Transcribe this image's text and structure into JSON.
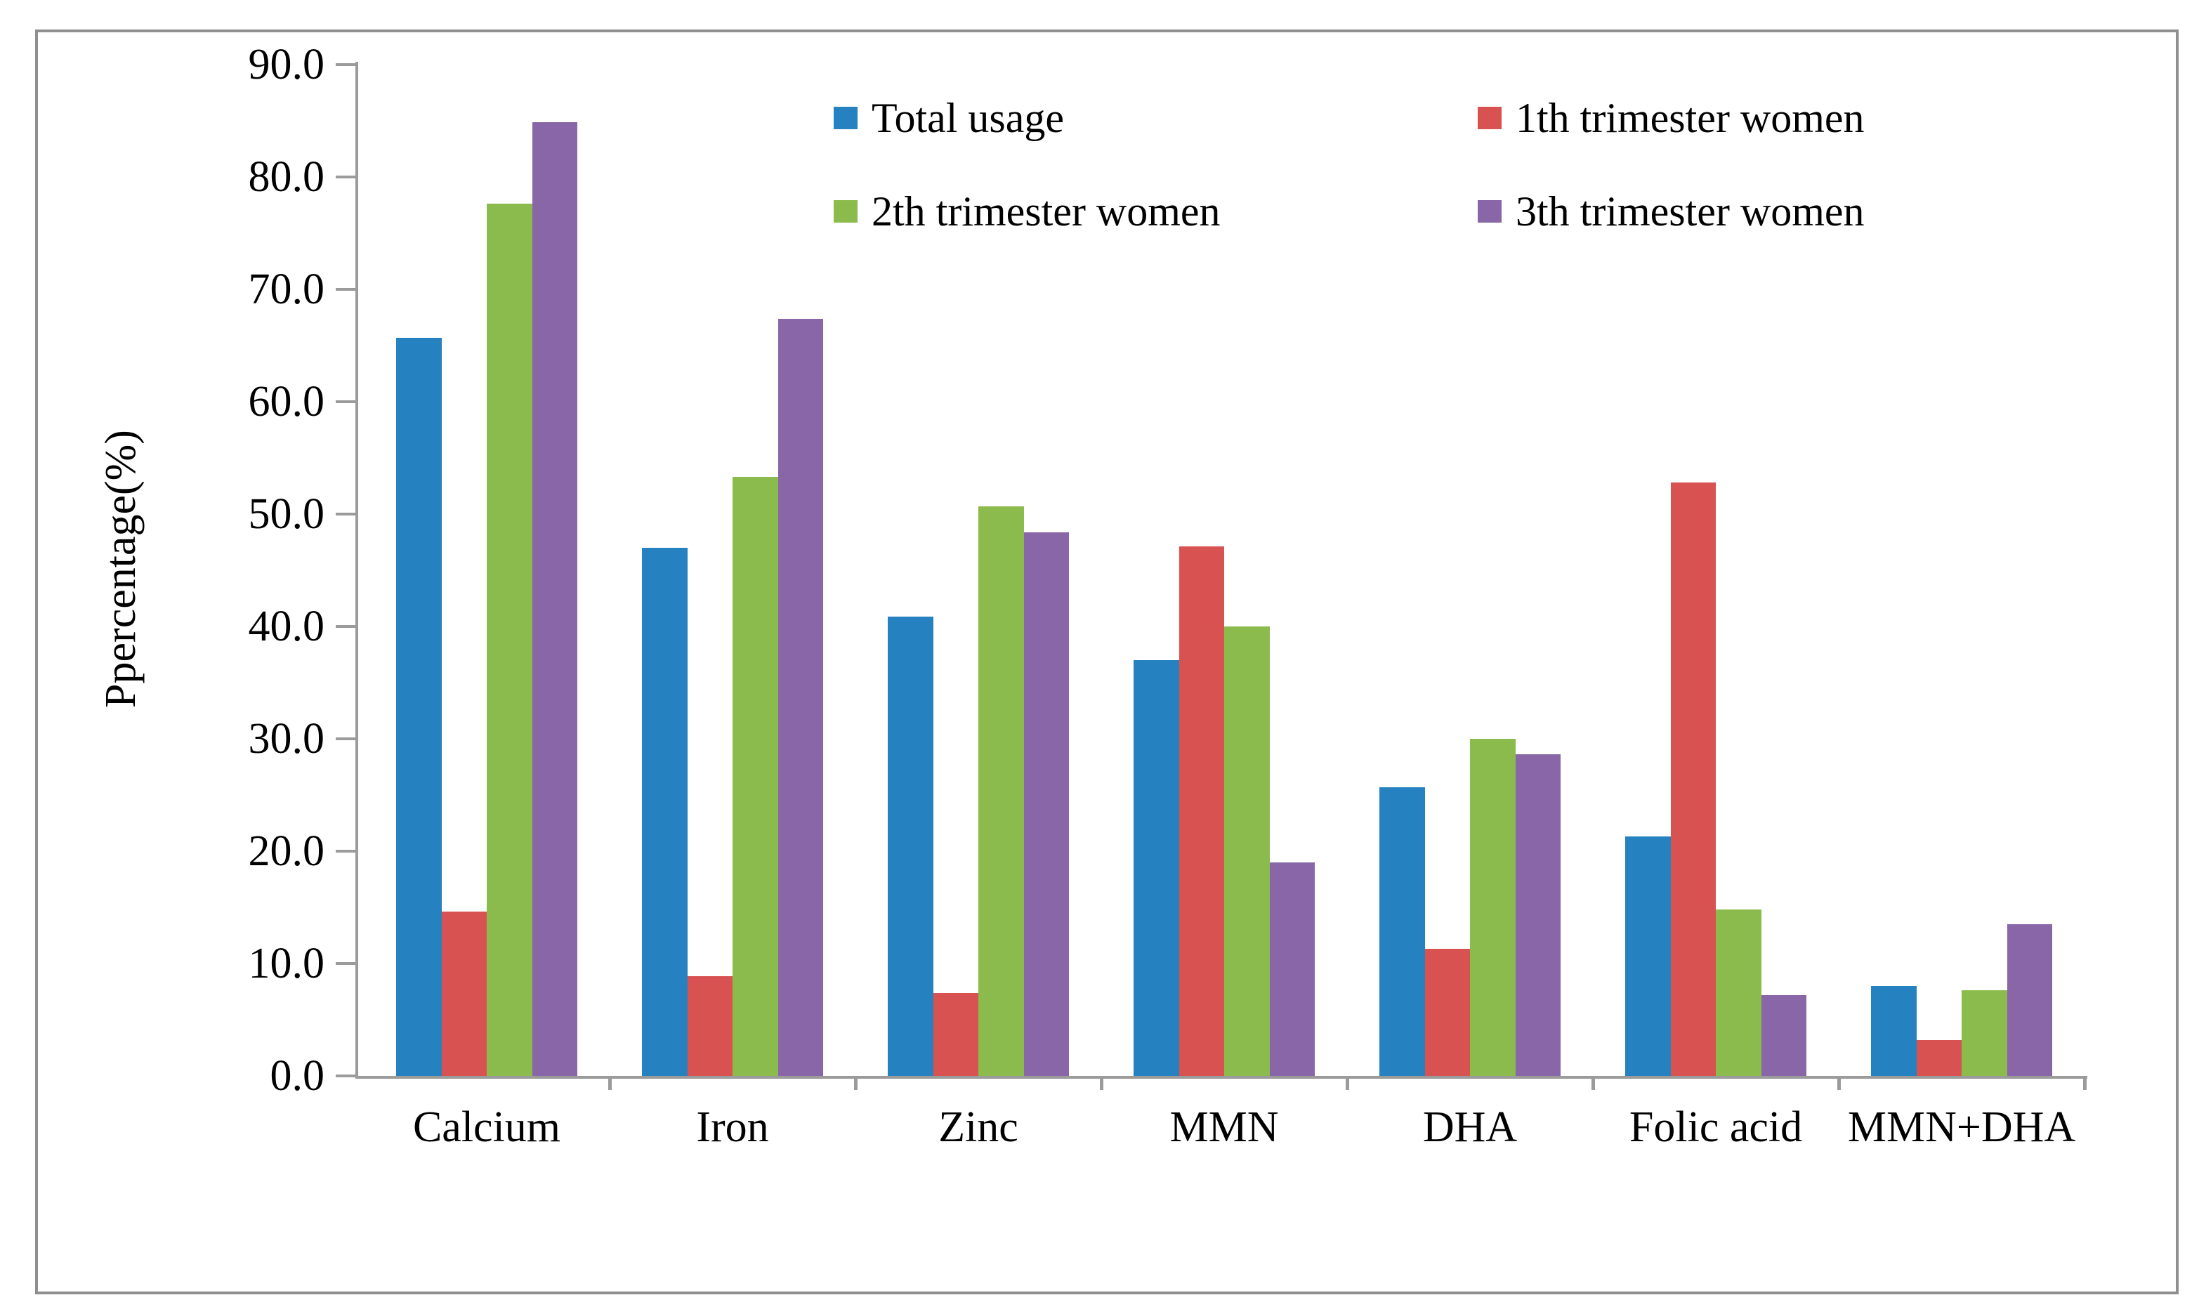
{
  "figure": {
    "background": "#ffffff",
    "border_color": "#8f8f8f",
    "axis_color": "#9b9b9b",
    "text_color": "#000000"
  },
  "chart_data": {
    "type": "bar",
    "title": "",
    "xlabel": "",
    "ylabel": "Ppercentage(%)",
    "ylim": [
      0,
      90
    ],
    "ytick_step": 10,
    "ytick_labels": [
      "0.0",
      "10.0",
      "20.0",
      "30.0",
      "40.0",
      "50.0",
      "60.0",
      "70.0",
      "80.0",
      "90.0"
    ],
    "grid": false,
    "legend_position": "top-inside-two-columns",
    "categories": [
      "Calcium",
      "Iron",
      "Zinc",
      "MMN",
      "DHA",
      "Folic acid",
      "MMN+DHA"
    ],
    "series": [
      {
        "name": "Total usage",
        "color": "#2581bf",
        "values": [
          65.7,
          47.0,
          40.9,
          37.0,
          25.7,
          21.3,
          8.0
        ]
      },
      {
        "name": "1th trimester women",
        "color": "#d95252",
        "values": [
          14.6,
          8.9,
          7.4,
          47.1,
          11.3,
          52.8,
          3.2
        ]
      },
      {
        "name": "2th trimester women",
        "color": "#8cbb4d",
        "values": [
          77.6,
          53.3,
          50.7,
          40.0,
          30.0,
          14.8,
          7.6
        ]
      },
      {
        "name": "3th trimester women",
        "color": "#8966a7",
        "values": [
          84.9,
          67.4,
          48.4,
          19.0,
          28.6,
          7.2,
          13.5
        ]
      }
    ]
  }
}
